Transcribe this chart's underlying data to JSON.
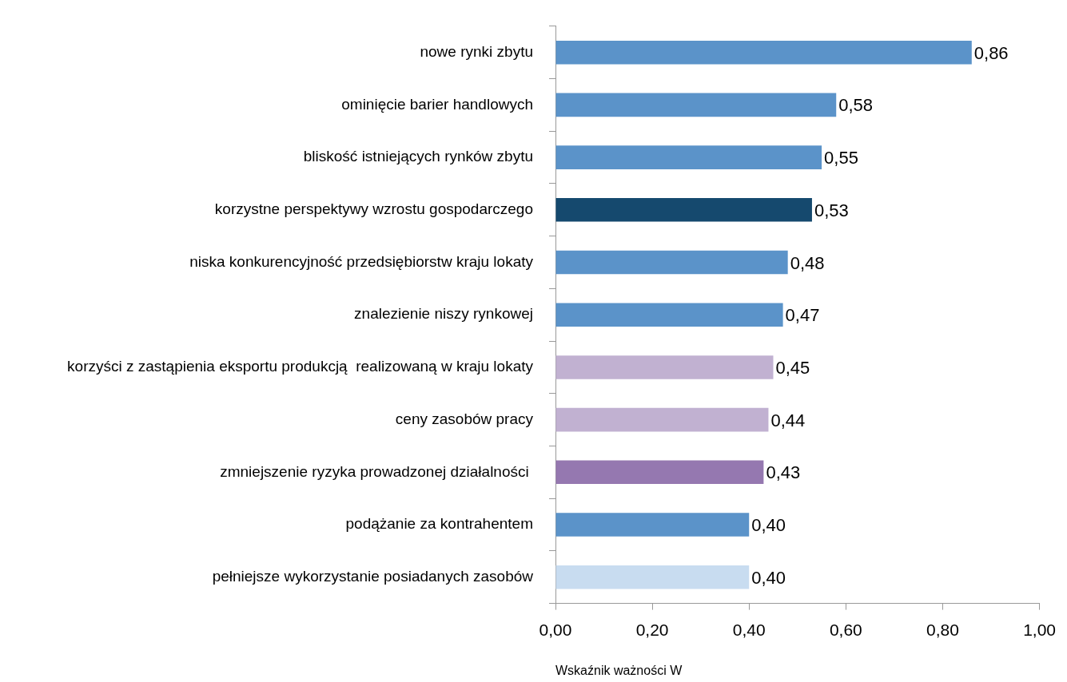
{
  "chart_data": {
    "type": "bar",
    "orientation": "horizontal",
    "xlabel": "Wskaźnik ważności W",
    "categories": [
      "nowe rynki zbytu",
      "ominięcie barier handlowych",
      "bliskość istniejących rynków zbytu",
      "korzystne perspektywy wzrostu gospodarczego",
      "niska konkurencyjność przedsiębiorstw kraju lokaty",
      "znalezienie niszy rynkowej",
      "korzyści z zastąpienia eksportu produkcją  realizowaną w kraju lokaty",
      "ceny zasobów pracy",
      "zmniejszenie ryzyka prowadzonej działalności ",
      "podążanie za kontrahentem",
      "pełniejsze wykorzystanie posiadanych zasobów"
    ],
    "values": [
      0.86,
      0.58,
      0.55,
      0.53,
      0.48,
      0.47,
      0.45,
      0.44,
      0.43,
      0.4,
      0.4
    ],
    "value_labels": [
      "0,86",
      "0,58",
      "0,55",
      "0,53",
      "0,48",
      "0,47",
      "0,45",
      "0,44",
      "0,43",
      "0,40",
      "0,40"
    ],
    "colors": [
      "#5b93c9",
      "#5b93c9",
      "#5b93c9",
      "#15496e",
      "#5b93c9",
      "#5b93c9",
      "#c1b1d1",
      "#c1b1d1",
      "#9578b0",
      "#5b93c9",
      "#c8dcf0"
    ],
    "xlim": [
      0,
      1
    ],
    "xticks": [
      {
        "value": 0,
        "label": "0,00"
      },
      {
        "value": 0.2,
        "label": "0,20"
      },
      {
        "value": 0.4,
        "label": "0,40"
      },
      {
        "value": 0.6,
        "label": "0,60"
      },
      {
        "value": 0.8,
        "label": "0,80"
      },
      {
        "value": 1,
        "label": "1,00"
      }
    ],
    "grid": false,
    "legend": false
  }
}
